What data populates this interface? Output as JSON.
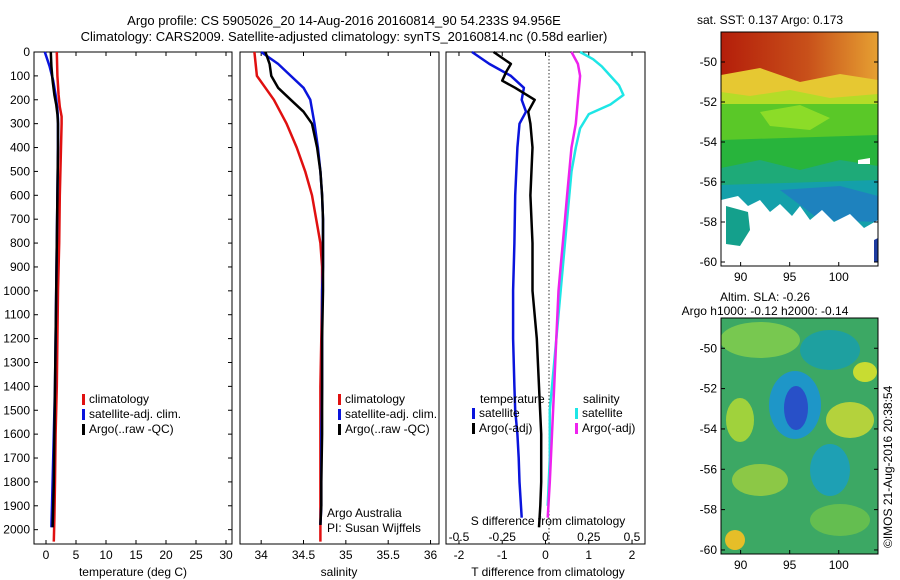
{
  "header": {
    "line1": "Argo profile: CS 5905026_20 14-Aug-2016 20160814_90 54.233S 94.956E",
    "line2": "Climatology: CARS2009. Satellite-adjusted climatology: synTS_20160814.nc (0.58d earlier)"
  },
  "colors": {
    "red": "#e01010",
    "blue": "#0a14dc",
    "black": "#000000",
    "cyan": "#1ee6e6",
    "magenta": "#ee22ee"
  },
  "chart_data": [
    {
      "type": "line",
      "id": "temperature",
      "xlabel": "temperature (deg C)",
      "xlim": [
        -2,
        31
      ],
      "ylim": [
        2060,
        0
      ],
      "xticks": [
        0,
        5,
        10,
        15,
        20,
        25,
        30
      ],
      "yticks": [
        0,
        100,
        200,
        300,
        400,
        500,
        600,
        700,
        800,
        900,
        1000,
        1100,
        1200,
        1300,
        1400,
        1500,
        1600,
        1700,
        1800,
        1900,
        2000
      ],
      "legend": [
        "climatology",
        "satellite-adj. clim.",
        "Argo(..raw -QC)"
      ],
      "series": [
        {
          "name": "climatology",
          "color": "red",
          "x": [
            1.8,
            1.9,
            2.1,
            2.3,
            2.6,
            2.6,
            2.5,
            2.4,
            2.3,
            2.2,
            2.0,
            1.9,
            1.8,
            1.6,
            1.5,
            1.4,
            1.3
          ],
          "y": [
            0,
            100,
            180,
            230,
            270,
            300,
            400,
            500,
            600,
            800,
            1000,
            1200,
            1400,
            1600,
            1800,
            1950,
            2050
          ]
        },
        {
          "name": "satellite-adj. clim.",
          "color": "blue",
          "x": [
            -0.2,
            0.6,
            1.2,
            1.6,
            1.9,
            2.0,
            2.0,
            1.9,
            1.8,
            1.7,
            1.6,
            1.5,
            1.4,
            1.3,
            1.2,
            1.1,
            1.0,
            0.9
          ],
          "y": [
            0,
            60,
            120,
            180,
            240,
            280,
            400,
            600,
            800,
            1000,
            1200,
            1400,
            1500,
            1600,
            1700,
            1800,
            1900,
            1990
          ]
        },
        {
          "name": "Argo(..raw -QC)",
          "color": "black",
          "x": [
            0.8,
            0.9,
            1.1,
            1.4,
            1.7,
            1.9,
            2.0,
            2.0,
            1.9,
            1.8,
            1.7,
            1.6,
            1.5,
            1.4,
            1.3,
            1.2,
            1.1
          ],
          "y": [
            0,
            60,
            120,
            180,
            220,
            260,
            300,
            400,
            600,
            800,
            1000,
            1200,
            1400,
            1600,
            1800,
            1900,
            1990
          ]
        }
      ]
    },
    {
      "type": "line",
      "id": "salinity",
      "xlabel": "salinity",
      "xlim": [
        33.75,
        36.1
      ],
      "ylim": [
        2060,
        0
      ],
      "xticks": [
        34,
        34.5,
        35,
        35.5,
        36
      ],
      "legend": [
        "climatology",
        "satellite-adj. clim.",
        "Argo(..raw -QC)"
      ],
      "annotation": [
        "Argo Australia",
        "PI: Susan Wijffels"
      ],
      "series": [
        {
          "name": "climatology",
          "color": "red",
          "x": [
            33.92,
            33.95,
            34.05,
            34.15,
            34.3,
            34.42,
            34.52,
            34.6,
            34.65,
            34.7,
            34.72,
            34.72,
            34.71,
            34.7,
            34.7,
            34.7,
            34.7,
            34.7,
            34.7
          ],
          "y": [
            0,
            100,
            150,
            200,
            300,
            400,
            500,
            600,
            700,
            800,
            900,
            1000,
            1200,
            1400,
            1600,
            1800,
            1900,
            2000,
            2050
          ]
        },
        {
          "name": "satellite-adj. clim.",
          "color": "blue",
          "x": [
            34.0,
            34.2,
            34.35,
            34.5,
            34.58,
            34.63,
            34.67,
            34.7,
            34.72,
            34.73,
            34.73,
            34.73,
            34.72,
            34.72,
            34.72,
            34.71,
            34.71,
            34.71,
            34.7
          ],
          "y": [
            0,
            50,
            100,
            150,
            200,
            300,
            400,
            500,
            600,
            700,
            800,
            900,
            1000,
            1200,
            1400,
            1600,
            1800,
            1900,
            1980
          ]
        },
        {
          "name": "Argo(..raw -QC)",
          "color": "black",
          "x": [
            34.05,
            34.1,
            34.12,
            34.2,
            34.35,
            34.5,
            34.6,
            34.66,
            34.7,
            34.72,
            34.73,
            34.73,
            34.73,
            34.72,
            34.72,
            34.72,
            34.71,
            34.71,
            34.7
          ],
          "y": [
            0,
            50,
            100,
            150,
            200,
            250,
            300,
            400,
            500,
            600,
            700,
            900,
            1000,
            1200,
            1400,
            1600,
            1800,
            1900,
            1980
          ]
        }
      ]
    },
    {
      "type": "line",
      "id": "differences",
      "xlabel": "T difference from climatology",
      "xlabel2": "S difference from climatology",
      "xlim": [
        -2.3,
        2.3
      ],
      "ylim": [
        2060,
        0
      ],
      "xticks": [
        -2,
        -1,
        0,
        1,
        2
      ],
      "xticks2_labels": [
        "-0.5",
        "-0.25",
        "0",
        "0.25",
        "0.5"
      ],
      "xticks2_pos": [
        -2,
        -1,
        0,
        1,
        2
      ],
      "legend_titles": [
        "temperature",
        "salinity"
      ],
      "legend": [
        "satellite",
        "Argo(-adj)",
        "satellite",
        "Argo(-adj)"
      ],
      "series": [
        {
          "name": "satellite",
          "color": "blue",
          "x": [
            -1.7,
            -1.3,
            -0.8,
            -0.5,
            -0.55,
            -0.45,
            -0.6,
            -0.65,
            -0.7,
            -0.72,
            -0.75,
            -0.75,
            -0.72,
            -0.7,
            -0.65,
            -0.62,
            -0.6,
            -0.55
          ],
          "y": [
            0,
            50,
            100,
            150,
            200,
            250,
            300,
            400,
            600,
            800,
            1000,
            1200,
            1400,
            1500,
            1600,
            1700,
            1800,
            1950
          ]
        },
        {
          "name": "Argo(-adj)",
          "color": "black",
          "x": [
            -1.2,
            -0.8,
            -0.9,
            -1.0,
            -0.7,
            -0.25,
            -0.4,
            -0.35,
            -0.3,
            -0.35,
            -0.3,
            -0.3,
            -0.2,
            -0.15,
            -0.1,
            -0.1,
            -0.12,
            -0.15
          ],
          "y": [
            0,
            50,
            80,
            120,
            150,
            200,
            250,
            300,
            400,
            600,
            800,
            1000,
            1200,
            1400,
            1600,
            1800,
            1900,
            1990
          ]
        },
        {
          "name": "satellite",
          "color": "cyan",
          "x": [
            0.8,
            1.1,
            1.3,
            1.5,
            1.7,
            1.8,
            1.5,
            1.0,
            0.8,
            0.7,
            0.6,
            0.5,
            0.4,
            0.3,
            0.2,
            0.1,
            0.1,
            0.05
          ],
          "y": [
            0,
            30,
            60,
            100,
            140,
            180,
            220,
            260,
            320,
            400,
            500,
            700,
            900,
            1100,
            1300,
            1500,
            1700,
            1900
          ]
        },
        {
          "name": "Argo(-adj)",
          "color": "magenta",
          "x": [
            0.6,
            0.75,
            0.8,
            0.75,
            0.7,
            0.6,
            0.55,
            0.5,
            0.45,
            0.4,
            0.35,
            0.3,
            0.25,
            0.2,
            0.15,
            0.1,
            0.05
          ],
          "y": [
            0,
            50,
            100,
            200,
            300,
            400,
            500,
            600,
            700,
            800,
            900,
            1000,
            1200,
            1400,
            1600,
            1800,
            1950
          ]
        }
      ]
    },
    {
      "type": "heatmap",
      "id": "sst_map",
      "title": "sat. SST: 0.137 Argo: 0.173",
      "xticks": [
        90,
        95,
        100
      ],
      "yticks": [
        -50,
        -52,
        -54,
        -56,
        -58,
        -60
      ],
      "xlim": [
        88,
        104
      ],
      "ylim": [
        -60.2,
        -48.5
      ]
    },
    {
      "type": "heatmap",
      "id": "sla_map",
      "title_line1": "Altim. SLA: -0.26",
      "title_line2": "Argo h1000: -0.12 h2000: -0.14",
      "xticks": [
        90,
        95,
        100
      ],
      "yticks": [
        -50,
        -52,
        -54,
        -56,
        -58,
        -60
      ],
      "xlim": [
        88,
        104
      ],
      "ylim": [
        -60.2,
        -48.5
      ]
    }
  ],
  "footer": {
    "credit": "©IMOS 21-Aug-2016 20:38:54"
  }
}
